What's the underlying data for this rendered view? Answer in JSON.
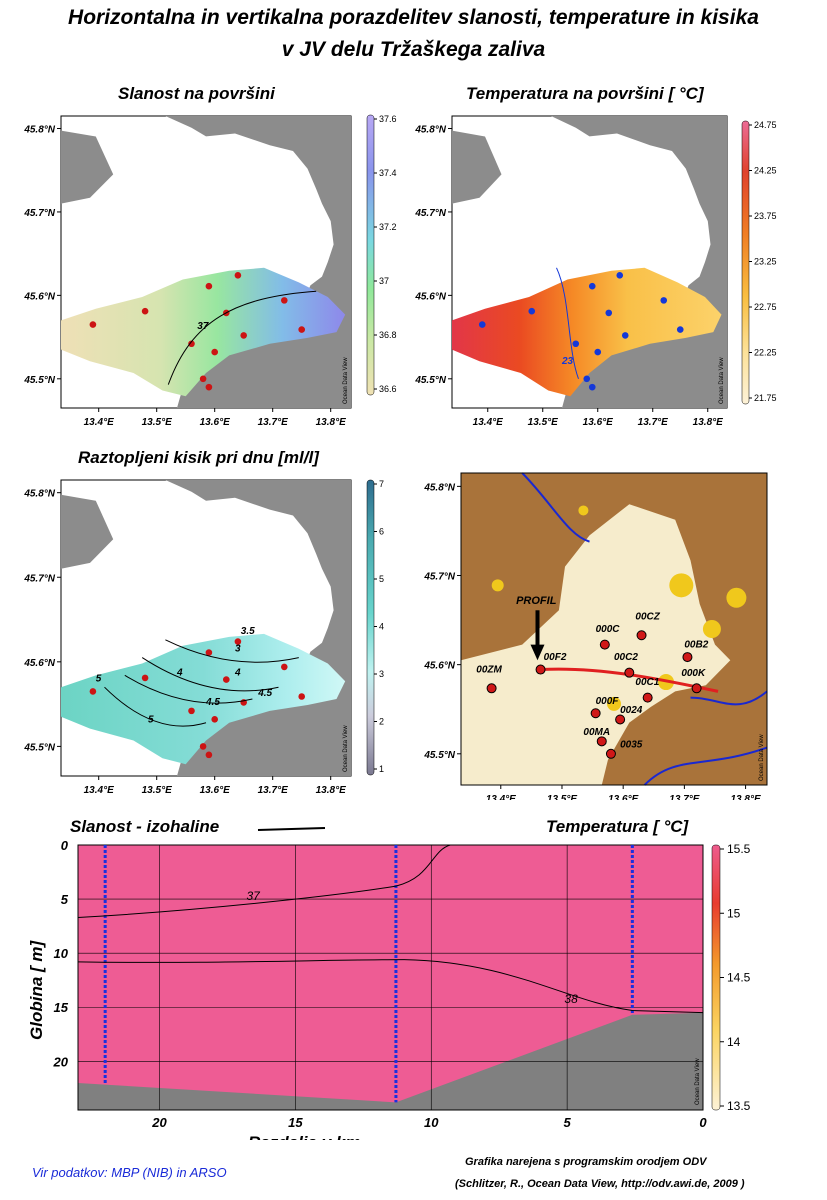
{
  "title_line1": "Horizontalna in vertikalna porazdelitev slanosti, temperature in kisika",
  "title_line2": "v JV delu Tržaškega zaliva",
  "panels": {
    "salinity": {
      "title": "Slanost na površini"
    },
    "temperature": {
      "title": "Temperatura na površini [ °C]"
    },
    "oxygen": {
      "title": "Raztopljeni kisik pri dnu [ml/l]"
    }
  },
  "lat_ticks": [
    "45.8°N",
    "45.7°N",
    "45.6°N",
    "45.5°N"
  ],
  "lon_ticks": [
    "13.4°E",
    "13.5°E",
    "13.6°E",
    "13.7°E",
    "13.8°E"
  ],
  "odv_mark": "Ocean Data View",
  "colorbars": {
    "salinity": {
      "ticks": [
        "37.6",
        "37.4",
        "37.2",
        "37",
        "36.8",
        "36.6"
      ]
    },
    "temperature": {
      "ticks": [
        "24.75",
        "24.25",
        "23.75",
        "23.25",
        "22.75",
        "22.25",
        "21.75"
      ]
    },
    "oxygen": {
      "ticks": [
        "7",
        "6",
        "5",
        "4",
        "3",
        "2",
        "1"
      ]
    },
    "section": {
      "ticks": [
        "15.5",
        "15",
        "14.5",
        "14",
        "13.5"
      ]
    }
  },
  "contours": {
    "salinity": [
      "37"
    ],
    "temperature": [
      "23"
    ],
    "oxygen": [
      "3",
      "3.5",
      "4",
      "4.5",
      "4.5",
      "5",
      "5",
      "4"
    ],
    "section": [
      "37",
      "38"
    ]
  },
  "station_map": {
    "profile_label": "PROFIL",
    "stations": [
      "00CZ",
      "000C",
      "00F2",
      "00C2",
      "00B2",
      "00ZM",
      "000K",
      "00C1",
      "000F",
      "0024",
      "00MA",
      "0035"
    ]
  },
  "section": {
    "legend_left": "Slanost - izohaline",
    "legend_right": "Temperatura  [ °C]",
    "ylabel": "Globina  [ m]",
    "xlabel": "Razdalja v km",
    "yticks": [
      "0",
      "5",
      "10",
      "15",
      "20"
    ],
    "xticks": [
      "20",
      "15",
      "10",
      "5",
      "0"
    ]
  },
  "source": "Vir podatkov: MBP (NIB) in ARSO",
  "credit_line1": "Grafika narejena s programskim orodjem ODV",
  "credit_line2": "(Schlitzer, R., Ocean Data View, http://odv.awi.de, 2009 )",
  "chart_data": [
    {
      "type": "heatmap",
      "title": "Slanost na površini",
      "colorbar_range": [
        36.5,
        37.6
      ],
      "contours": [
        37
      ],
      "stations": [
        [
          13.39,
          45.565
        ],
        [
          13.48,
          45.581
        ],
        [
          13.59,
          45.611
        ],
        [
          13.64,
          45.624
        ],
        [
          13.62,
          45.579
        ],
        [
          13.72,
          45.594
        ],
        [
          13.75,
          45.559
        ],
        [
          13.65,
          45.552
        ],
        [
          13.56,
          45.542
        ],
        [
          13.6,
          45.532
        ],
        [
          13.58,
          45.5
        ],
        [
          13.59,
          45.49
        ]
      ]
    },
    {
      "type": "heatmap",
      "title": "Temperatura na površini [ °C]",
      "colorbar_range": [
        21.75,
        24.75
      ],
      "contours": [
        23
      ],
      "stations": [
        [
          13.39,
          45.565
        ],
        [
          13.48,
          45.581
        ],
        [
          13.59,
          45.611
        ],
        [
          13.64,
          45.624
        ],
        [
          13.62,
          45.579
        ],
        [
          13.72,
          45.594
        ],
        [
          13.75,
          45.559
        ],
        [
          13.65,
          45.552
        ],
        [
          13.56,
          45.542
        ],
        [
          13.6,
          45.532
        ],
        [
          13.58,
          45.5
        ],
        [
          13.59,
          45.49
        ]
      ]
    },
    {
      "type": "heatmap",
      "title": "Raztopljeni kisik pri dnu [ml/l]",
      "colorbar_range": [
        1,
        7
      ],
      "contours": [
        3,
        3.5,
        4,
        4.5,
        5
      ],
      "stations": [
        [
          13.39,
          45.565
        ],
        [
          13.48,
          45.581
        ],
        [
          13.59,
          45.611
        ],
        [
          13.64,
          45.624
        ],
        [
          13.62,
          45.579
        ],
        [
          13.72,
          45.594
        ],
        [
          13.75,
          45.559
        ],
        [
          13.65,
          45.552
        ],
        [
          13.56,
          45.542
        ],
        [
          13.6,
          45.532
        ],
        [
          13.58,
          45.5
        ],
        [
          13.59,
          45.49
        ]
      ]
    },
    {
      "type": "heatmap",
      "title": "Temperatura [ °C]",
      "xlabel": "Razdalja v km",
      "ylabel": "Globina [ m]",
      "xlim": [
        23,
        0
      ],
      "ylim": [
        24.5,
        0
      ],
      "colorbar_range": [
        13.5,
        15.5
      ],
      "isohalines": [
        37,
        38
      ],
      "station_distances_km": [
        22,
        11.3,
        2.6
      ]
    }
  ]
}
